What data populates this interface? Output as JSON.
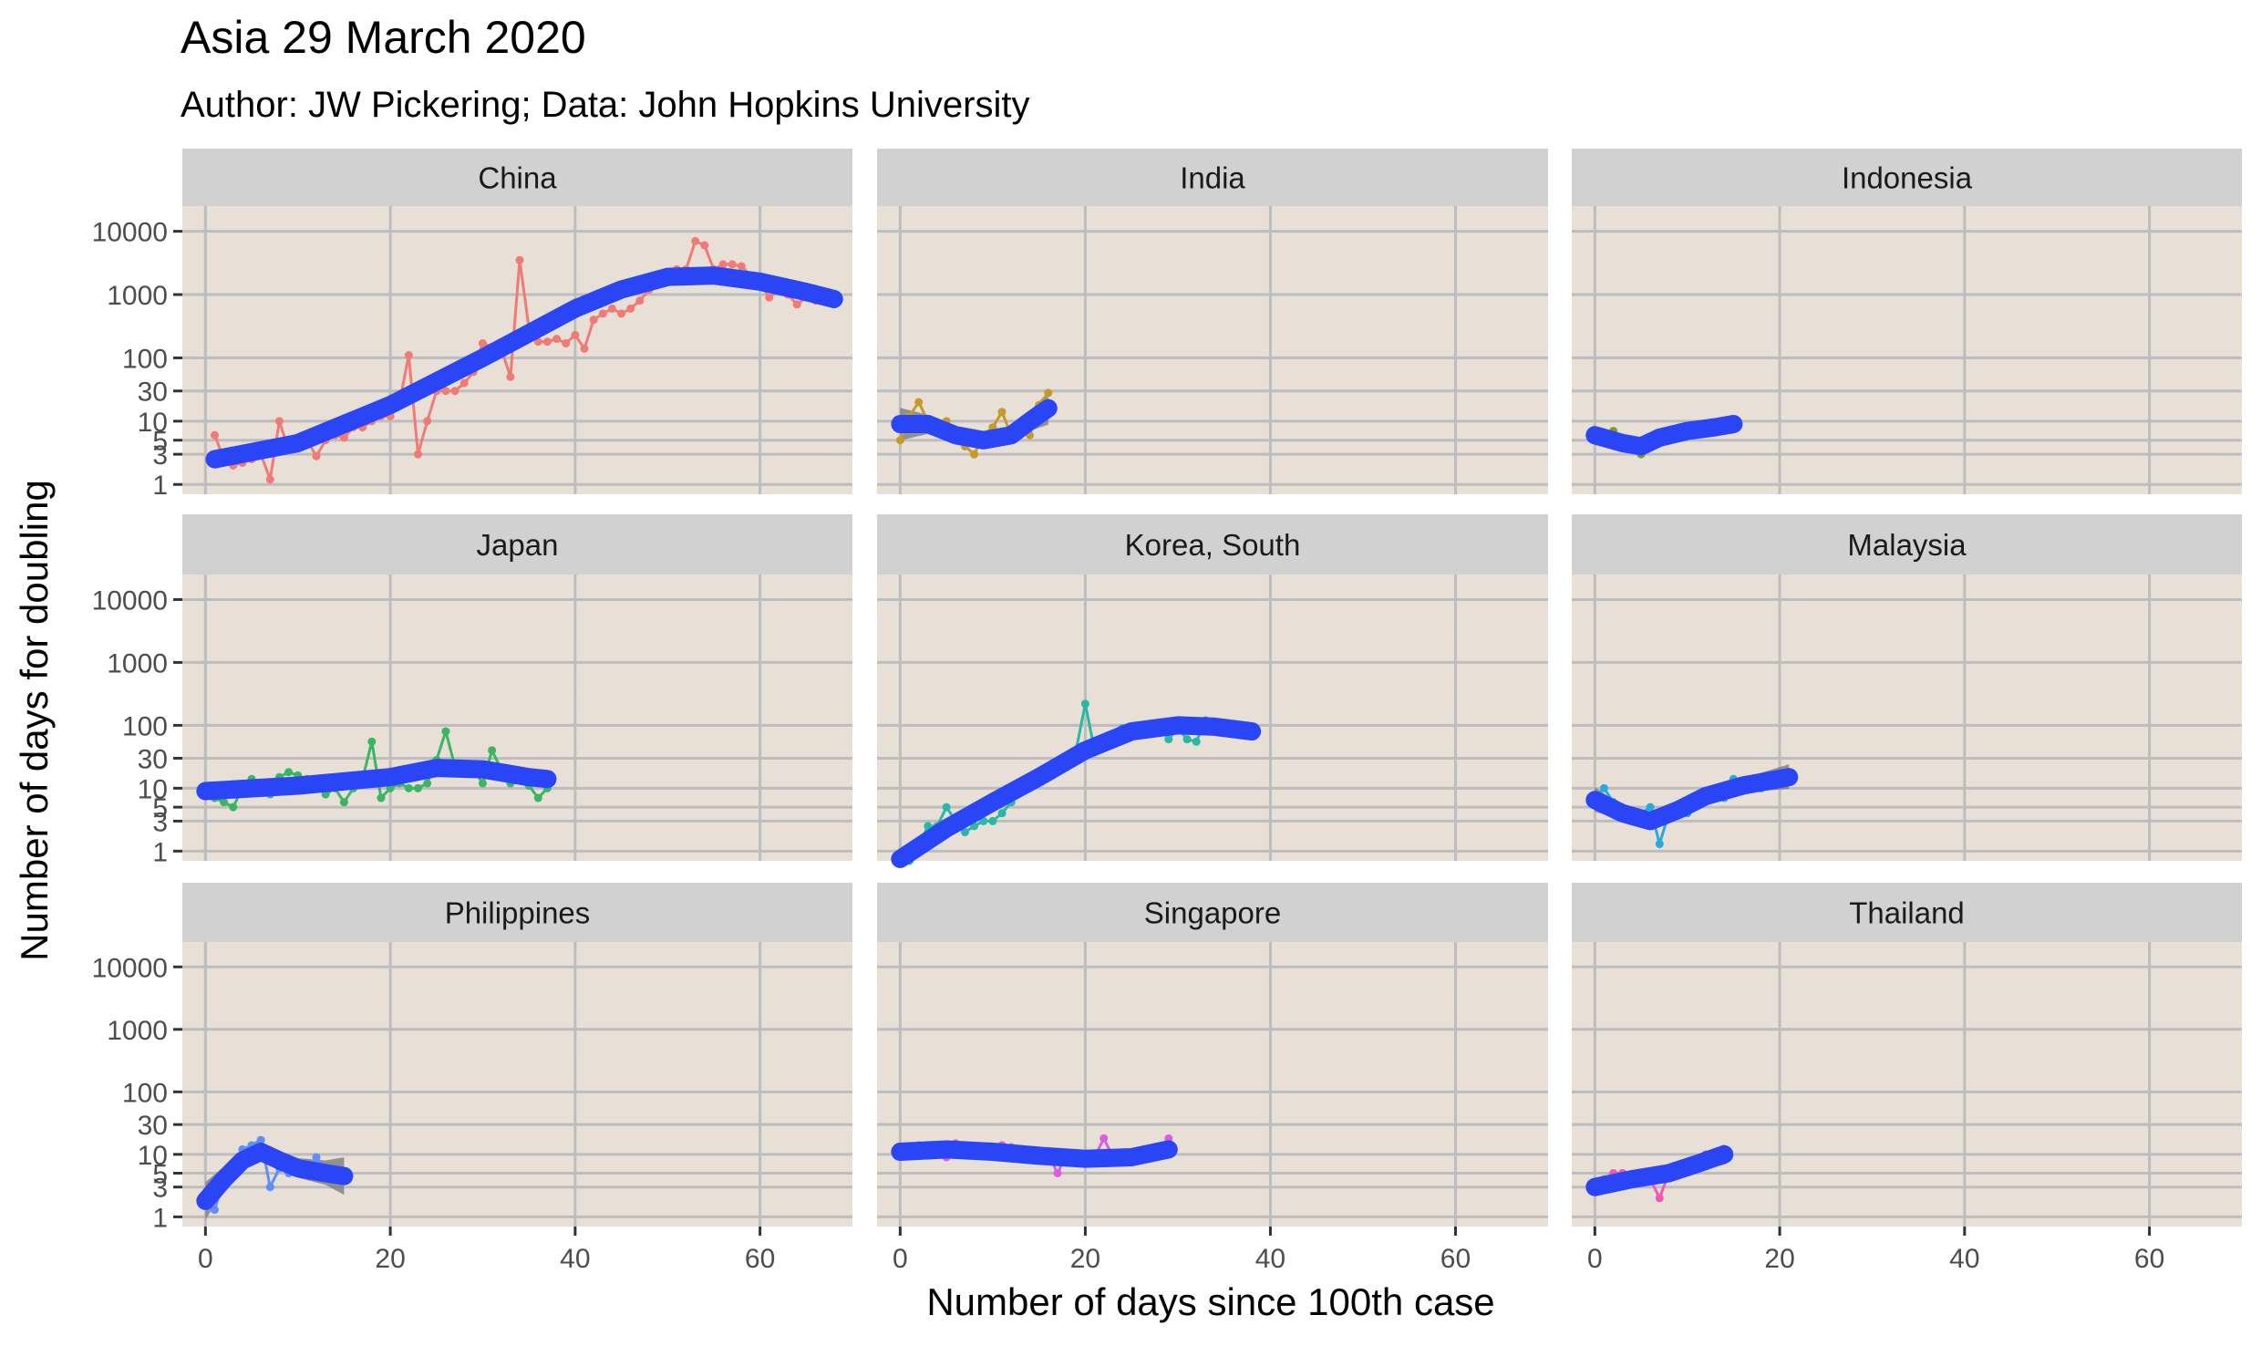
{
  "title": "Asia 29 March 2020",
  "subtitle": "Author: JW Pickering; Data: John Hopkins University",
  "chart_data": {
    "type": "line",
    "facet": "wrap 3x3, log y scale, points + line + smoothed fit with confidence band",
    "xlabel": "Number of days since 100th case",
    "ylabel": "Number of days for doubling",
    "x_ticks": [
      0,
      20,
      40,
      60
    ],
    "x_tick_labels": [
      "0",
      "20",
      "40",
      "60"
    ],
    "xlim": [
      -2.5,
      70
    ],
    "y_scale": "log10",
    "y_ticks": [
      1,
      3,
      5,
      10,
      30,
      100,
      1000,
      10000
    ],
    "y_tick_labels": [
      "1",
      "3",
      "5",
      "10",
      "30",
      "100",
      "1000",
      "10000"
    ],
    "ylim": [
      0.7,
      25000
    ],
    "grid": true,
    "panel_background": "#e8dfd7",
    "strip_background": "#d1d1d1",
    "grid_color": "#bdbdbd",
    "fit_color": "#2a45f5",
    "band_color": "#777777",
    "series": [
      {
        "name": "China",
        "color": "#f07a75",
        "x": [
          1,
          2,
          3,
          4,
          5,
          6,
          7,
          8,
          9,
          10,
          11,
          12,
          13,
          14,
          15,
          16,
          17,
          18,
          19,
          20,
          21,
          22,
          23,
          24,
          25,
          26,
          27,
          28,
          29,
          30,
          31,
          32,
          33,
          34,
          35,
          36,
          37,
          38,
          39,
          40,
          41,
          42,
          43,
          44,
          45,
          46,
          47,
          48,
          49,
          50,
          51,
          52,
          53,
          54,
          55,
          56,
          57,
          58,
          59,
          60,
          61,
          62,
          63,
          64,
          65,
          66,
          67,
          68
        ],
        "y": [
          6,
          2.5,
          2,
          2.2,
          2.5,
          3,
          1.2,
          10,
          3.5,
          5,
          5,
          2.8,
          5,
          6,
          5.5,
          8,
          8,
          10,
          12,
          12,
          20,
          110,
          3,
          10,
          30,
          30,
          30,
          40,
          60,
          170,
          150,
          140,
          50,
          3500,
          300,
          180,
          180,
          200,
          170,
          230,
          140,
          400,
          500,
          600,
          500,
          600,
          800,
          1200,
          1800,
          2000,
          2500,
          2500,
          7000,
          6000,
          2500,
          3000,
          3000,
          2800,
          2000,
          1500,
          900,
          1200,
          1000,
          700,
          900,
          800,
          900,
          700
        ],
        "fit": [
          [
            1,
            2.5
          ],
          [
            10,
            4.5
          ],
          [
            20,
            18
          ],
          [
            30,
            100
          ],
          [
            40,
            600
          ],
          [
            45,
            1200
          ],
          [
            50,
            1900
          ],
          [
            55,
            2000
          ],
          [
            60,
            1600
          ],
          [
            65,
            1100
          ],
          [
            68,
            850
          ]
        ],
        "band_lo": [
          0.75,
          0.85,
          0.85,
          0.85,
          0.85,
          0.85,
          0.85,
          0.85,
          0.85,
          0.85,
          0.75
        ],
        "band_hi": [
          1.35,
          1.2,
          1.18,
          1.18,
          1.18,
          1.18,
          1.18,
          1.18,
          1.18,
          1.2,
          1.35
        ]
      },
      {
        "name": "India",
        "color": "#c49a2b",
        "x": [
          0,
          1,
          2,
          3,
          4,
          5,
          6,
          7,
          8,
          9,
          10,
          11,
          12,
          13,
          14,
          15,
          16
        ],
        "y": [
          5,
          12,
          20,
          10,
          9,
          10,
          5,
          4,
          3,
          6,
          8,
          14,
          6,
          8,
          6,
          18,
          28
        ],
        "fit": [
          [
            0,
            9
          ],
          [
            3,
            9
          ],
          [
            6,
            6
          ],
          [
            9,
            5
          ],
          [
            12,
            6
          ],
          [
            14,
            10
          ],
          [
            16,
            16
          ]
        ],
        "band_lo": [
          0.55,
          0.7,
          0.72,
          0.72,
          0.72,
          0.7,
          0.55
        ],
        "band_hi": [
          1.8,
          1.4,
          1.38,
          1.38,
          1.38,
          1.45,
          1.8
        ]
      },
      {
        "name": "Indonesia",
        "color": "#7d9c1f",
        "x": [
          0,
          1,
          2,
          3,
          4,
          5,
          6,
          7,
          8,
          9,
          10,
          11,
          12,
          13,
          14,
          15
        ],
        "y": [
          5,
          6,
          7,
          4,
          3.5,
          3,
          5,
          6,
          5,
          7,
          8,
          7,
          8,
          9,
          7,
          10
        ],
        "fit": [
          [
            0,
            6
          ],
          [
            3,
            4.5
          ],
          [
            5,
            4
          ],
          [
            7,
            5.5
          ],
          [
            10,
            7
          ],
          [
            13,
            8
          ],
          [
            15,
            9
          ]
        ],
        "band_lo": [
          0.7,
          0.8,
          0.82,
          0.82,
          0.82,
          0.8,
          0.7
        ],
        "band_hi": [
          1.4,
          1.25,
          1.22,
          1.22,
          1.22,
          1.25,
          1.4
        ]
      },
      {
        "name": "Japan",
        "color": "#3ab561",
        "x": [
          0,
          1,
          2,
          3,
          4,
          5,
          6,
          7,
          8,
          9,
          10,
          11,
          12,
          13,
          14,
          15,
          16,
          17,
          18,
          19,
          20,
          21,
          22,
          23,
          24,
          25,
          26,
          27,
          28,
          29,
          30,
          31,
          32,
          33,
          34,
          35,
          36,
          37
        ],
        "y": [
          9,
          7,
          6,
          5,
          10,
          14,
          9,
          8,
          15,
          18,
          16,
          14,
          13,
          8,
          10,
          6,
          10,
          14,
          55,
          7,
          10,
          12,
          10,
          10,
          12,
          28,
          80,
          22,
          24,
          20,
          12,
          40,
          20,
          12,
          15,
          11,
          7,
          10
        ],
        "fit": [
          [
            0,
            9
          ],
          [
            10,
            11
          ],
          [
            20,
            15
          ],
          [
            25,
            21
          ],
          [
            30,
            20
          ],
          [
            35,
            15
          ],
          [
            37,
            14
          ]
        ],
        "band_lo": [
          0.72,
          0.85,
          0.85,
          0.85,
          0.85,
          0.85,
          0.72
        ],
        "band_hi": [
          1.4,
          1.18,
          1.18,
          1.18,
          1.18,
          1.18,
          1.4
        ]
      },
      {
        "name": "Korea, South",
        "color": "#28b8a4",
        "x": [
          0,
          1,
          2,
          3,
          4,
          5,
          6,
          7,
          8,
          9,
          10,
          11,
          12,
          13,
          14,
          15,
          16,
          17,
          18,
          19,
          20,
          21,
          22,
          23,
          24,
          25,
          26,
          27,
          28,
          29,
          30,
          31,
          32,
          33,
          34,
          35,
          36,
          37,
          38
        ],
        "y": [
          0.7,
          0.7,
          1.2,
          2.5,
          2.5,
          5,
          3,
          2,
          2.5,
          3,
          3,
          4,
          6,
          10,
          10,
          14,
          15,
          20,
          30,
          40,
          220,
          40,
          60,
          70,
          90,
          95,
          100,
          95,
          100,
          60,
          90,
          60,
          55,
          120,
          100,
          90,
          90,
          70,
          90
        ],
        "fit": [
          [
            0,
            0.75
          ],
          [
            5,
            2.3
          ],
          [
            10,
            6
          ],
          [
            15,
            15
          ],
          [
            20,
            40
          ],
          [
            25,
            80
          ],
          [
            30,
            100
          ],
          [
            34,
            95
          ],
          [
            38,
            80
          ]
        ],
        "band_lo": [
          0.72,
          0.85,
          0.85,
          0.85,
          0.85,
          0.85,
          0.85,
          0.85,
          0.72
        ],
        "band_hi": [
          1.4,
          1.18,
          1.18,
          1.18,
          1.18,
          1.18,
          1.18,
          1.18,
          1.4
        ]
      },
      {
        "name": "Malaysia",
        "color": "#26a9de",
        "x": [
          0,
          1,
          2,
          3,
          4,
          5,
          6,
          7,
          8,
          9,
          10,
          11,
          12,
          13,
          14,
          15,
          16,
          17,
          18,
          19,
          20,
          21
        ],
        "y": [
          7,
          10,
          6,
          4,
          4,
          4,
          5,
          1.3,
          4,
          5,
          4,
          6,
          8,
          10,
          7,
          14,
          13,
          10,
          10,
          14,
          15,
          15
        ],
        "fit": [
          [
            0,
            6.5
          ],
          [
            3,
            4
          ],
          [
            6,
            3
          ],
          [
            9,
            4.5
          ],
          [
            12,
            7.5
          ],
          [
            16,
            11
          ],
          [
            21,
            15
          ]
        ],
        "band_lo": [
          0.65,
          0.78,
          0.8,
          0.8,
          0.8,
          0.78,
          0.65
        ],
        "band_hi": [
          1.6,
          1.3,
          1.25,
          1.25,
          1.25,
          1.3,
          1.6
        ]
      },
      {
        "name": "Philippines",
        "color": "#5f8ff5",
        "x": [
          0,
          1,
          2,
          3,
          4,
          5,
          6,
          7,
          8,
          9,
          10,
          11,
          12,
          13,
          14,
          15
        ],
        "y": [
          1.5,
          1.3,
          4,
          5,
          12,
          14,
          17,
          3,
          6,
          5,
          5,
          6,
          9,
          6,
          4,
          4
        ],
        "fit": [
          [
            0,
            1.8
          ],
          [
            2,
            4
          ],
          [
            4,
            8
          ],
          [
            6,
            11
          ],
          [
            8,
            8
          ],
          [
            10,
            6
          ],
          [
            13,
            5
          ],
          [
            15,
            4.5
          ]
        ],
        "band_lo": [
          0.5,
          0.65,
          0.7,
          0.72,
          0.72,
          0.7,
          0.65,
          0.5
        ],
        "band_hi": [
          2,
          1.6,
          1.45,
          1.4,
          1.4,
          1.45,
          1.6,
          2
        ]
      },
      {
        "name": "Singapore",
        "color": "#d95fe0",
        "x": [
          0,
          1,
          2,
          3,
          4,
          5,
          6,
          7,
          8,
          9,
          10,
          11,
          12,
          13,
          14,
          15,
          16,
          17,
          18,
          19,
          20,
          21,
          22,
          23,
          24,
          25,
          26,
          27,
          28,
          29
        ],
        "y": [
          10,
          11,
          14,
          13,
          12,
          9,
          15,
          12,
          11,
          10,
          10,
          14,
          13,
          12,
          10,
          9,
          10,
          5,
          10,
          9,
          8,
          9,
          18,
          9,
          8,
          10,
          8,
          11,
          12,
          18
        ],
        "fit": [
          [
            0,
            11
          ],
          [
            5,
            12
          ],
          [
            10,
            11
          ],
          [
            15,
            9.5
          ],
          [
            20,
            8.5
          ],
          [
            25,
            9
          ],
          [
            29,
            12
          ]
        ],
        "band_lo": [
          0.78,
          0.87,
          0.87,
          0.87,
          0.87,
          0.87,
          0.78
        ],
        "band_hi": [
          1.3,
          1.15,
          1.15,
          1.15,
          1.15,
          1.15,
          1.3
        ]
      },
      {
        "name": "Thailand",
        "color": "#f257b5",
        "x": [
          0,
          1,
          2,
          3,
          4,
          5,
          6,
          7,
          8,
          9,
          10,
          11,
          12,
          13,
          14
        ],
        "y": [
          2.5,
          4,
          5,
          5,
          4.5,
          5,
          4,
          2,
          5,
          6,
          7,
          8,
          10,
          10,
          8
        ],
        "fit": [
          [
            0,
            3
          ],
          [
            4,
            4
          ],
          [
            8,
            5
          ],
          [
            11,
            7
          ],
          [
            14,
            10
          ]
        ],
        "band_lo": [
          0.7,
          0.82,
          0.82,
          0.8,
          0.68
        ],
        "band_hi": [
          1.4,
          1.2,
          1.2,
          1.25,
          1.45
        ]
      }
    ]
  }
}
